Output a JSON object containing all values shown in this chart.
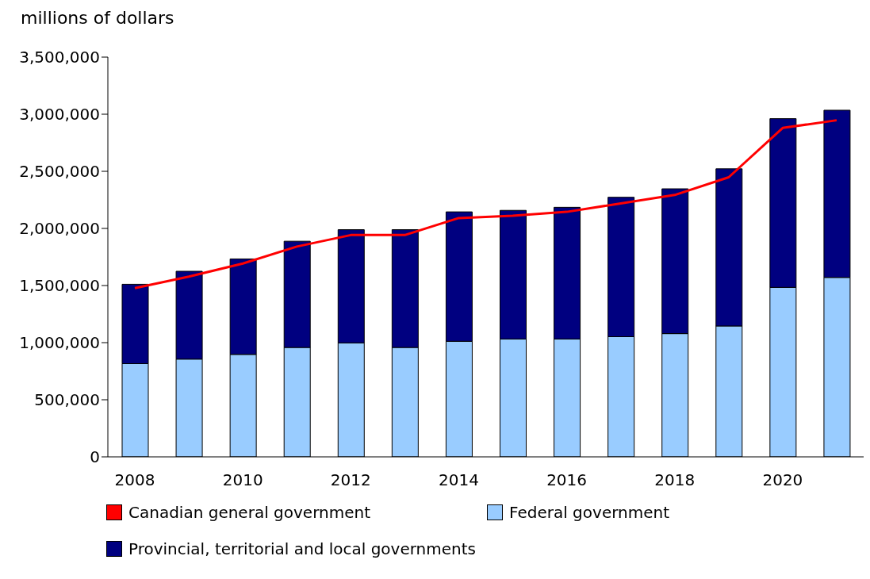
{
  "chart_data": {
    "type": "bar",
    "stacked": true,
    "ylabel": "millions of dollars",
    "categories": [
      "2008",
      null,
      "2010",
      null,
      "2012",
      null,
      "2014",
      null,
      "2016",
      null,
      "2018",
      null,
      "2020",
      null
    ],
    "series": [
      {
        "name": "Canadian general government",
        "type": "line",
        "color": "#ff0000",
        "values": [
          1477000,
          1578000,
          1693000,
          1841000,
          1942000,
          1942000,
          2091000,
          2111000,
          2145000,
          2219000,
          2293000,
          2448000,
          2880000,
          2947000
        ]
      },
      {
        "name": "Federal government",
        "color": "#99ccff",
        "values": [
          816000,
          856000,
          897000,
          958000,
          998000,
          958000,
          1012000,
          1032000,
          1032000,
          1052000,
          1079000,
          1146000,
          1484000,
          1571000
        ]
      },
      {
        "name": "Provincial, territorial and local governments",
        "color": "#000080",
        "values": [
          695000,
          769000,
          836000,
          930000,
          991000,
          1031000,
          1133000,
          1126000,
          1153000,
          1221000,
          1268000,
          1376000,
          1477000,
          1464000
        ]
      }
    ],
    "ylim": [
      0,
      3500000
    ],
    "yticks": [
      0,
      {
        "value": 500000,
        "label": "500,000"
      },
      {
        "value": 1000000,
        "label": "1,000,000"
      },
      {
        "value": 1500000,
        "label": "1,500,000"
      },
      {
        "value": 2000000,
        "label": "2,000,000"
      },
      {
        "value": 2500000,
        "label": "2,500,000"
      },
      {
        "value": 3000000,
        "label": "3,000,000"
      },
      {
        "value": 3500000,
        "label": "3,500,000"
      }
    ],
    "grid": false,
    "legend": "bottom",
    "marker": "none"
  }
}
